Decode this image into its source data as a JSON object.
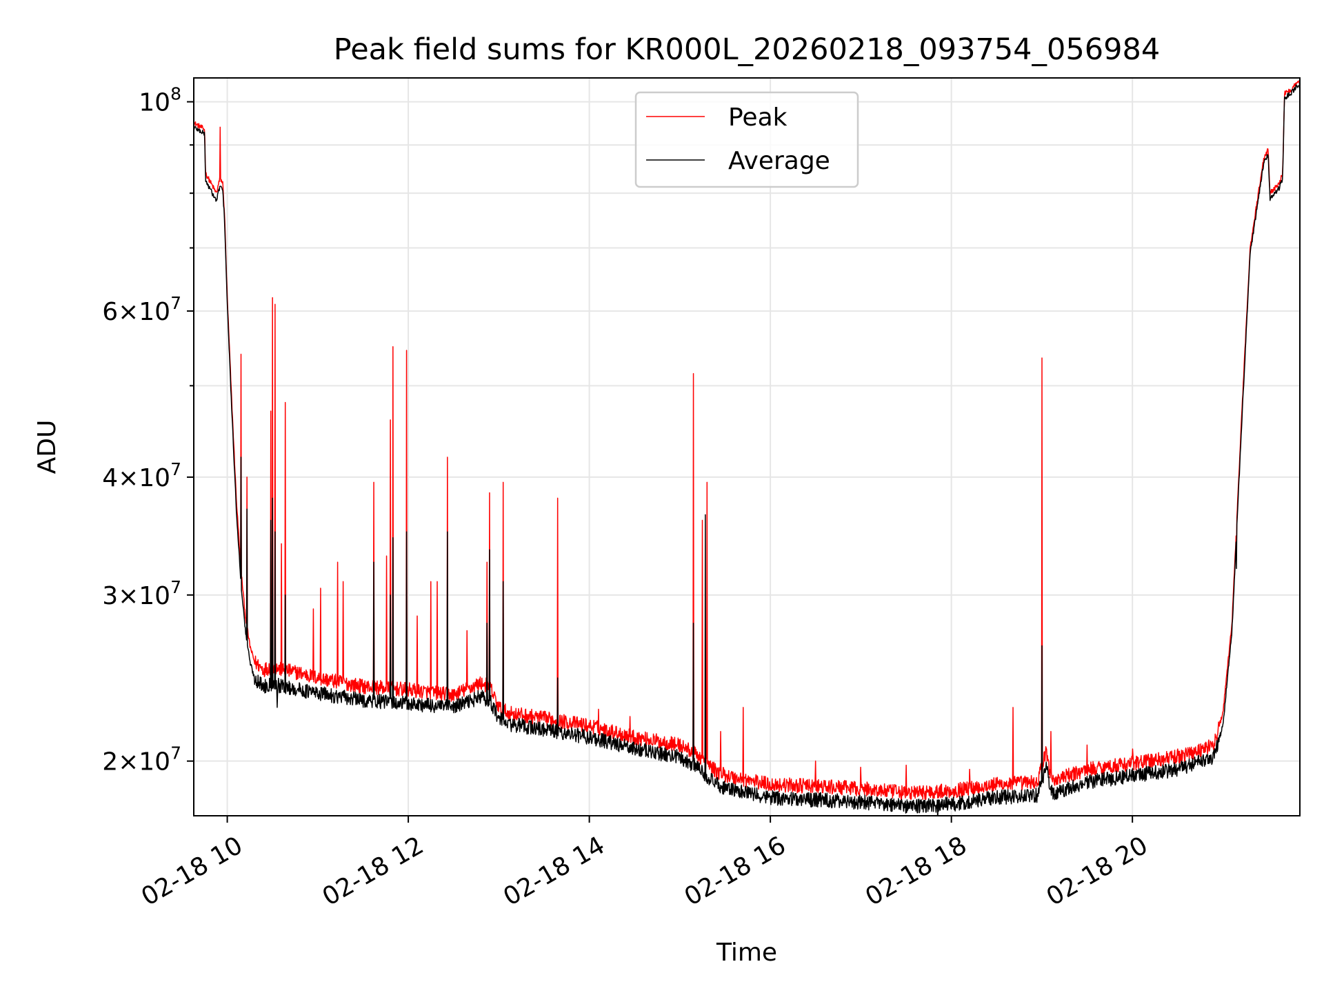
{
  "chart_data": {
    "type": "line",
    "title": "Peak field sums for KR000L_20260218_093754_056984",
    "xlabel": "Time",
    "ylabel": "ADU",
    "yscale": "log",
    "xlim": [
      9.63,
      21.85
    ],
    "ylim": [
      17500000,
      106000000
    ],
    "grid": true,
    "legend_position": "upper center",
    "x_ticks": [
      {
        "value": 10,
        "label": "02-18 10"
      },
      {
        "value": 12,
        "label": "02-18 12"
      },
      {
        "value": 14,
        "label": "02-18 14"
      },
      {
        "value": 16,
        "label": "02-18 16"
      },
      {
        "value": 18,
        "label": "02-18 18"
      },
      {
        "value": 20,
        "label": "02-18 20"
      }
    ],
    "y_ticks": [
      {
        "value": 20000000,
        "base": "2",
        "exp": "7"
      },
      {
        "value": 30000000,
        "base": "3",
        "exp": "7"
      },
      {
        "value": 40000000,
        "base": "4",
        "exp": "7"
      },
      {
        "value": 60000000,
        "base": "6",
        "exp": "7"
      },
      {
        "value": 100000000,
        "base": "",
        "exp": "8"
      }
    ],
    "y_minor_ticks": [
      50000000,
      70000000,
      80000000,
      90000000
    ],
    "times_label": "×",
    "tick_base_ten": "10",
    "series": [
      {
        "name": "Peak",
        "color": "#ff0000",
        "x": [
          9.63,
          9.75,
          9.76,
          9.88,
          9.92,
          9.95,
          9.97,
          10.0,
          10.05,
          10.1,
          10.15,
          10.2,
          10.25,
          10.3,
          10.4,
          10.5,
          10.6,
          10.8,
          11.0,
          11.5,
          12.0,
          12.5,
          12.8,
          12.9,
          13.0,
          13.1,
          13.5,
          14.0,
          14.5,
          15.0,
          15.2,
          15.4,
          15.6,
          16.0,
          16.5,
          17.0,
          17.5,
          18.0,
          18.5,
          18.95,
          19.05,
          19.1,
          19.15,
          19.5,
          20.0,
          20.5,
          20.9,
          21.0,
          21.1,
          21.2,
          21.3,
          21.45,
          21.5,
          21.52,
          21.62,
          21.66,
          21.68,
          21.75,
          21.82,
          21.85
        ],
        "y": [
          95000000,
          93500000,
          84000000,
          80000000,
          83000000,
          82000000,
          76000000,
          62000000,
          48000000,
          38000000,
          32000000,
          28500000,
          26500000,
          25500000,
          25000000,
          25200000,
          25000000,
          24800000,
          24500000,
          24000000,
          23800000,
          23500000,
          24200000,
          24000000,
          22800000,
          22500000,
          22200000,
          21800000,
          21200000,
          20800000,
          20300000,
          19500000,
          19200000,
          18900000,
          18800000,
          18700000,
          18500000,
          18600000,
          18900000,
          19000000,
          20500000,
          19200000,
          19100000,
          19600000,
          19900000,
          20200000,
          20800000,
          22500000,
          28000000,
          45000000,
          70000000,
          87000000,
          89000000,
          80000000,
          82000000,
          84000000,
          102000000,
          103000000,
          105000000,
          104500000
        ],
        "spikes": [
          [
            9.92,
            94000000
          ],
          [
            10.15,
            54000000
          ],
          [
            10.22,
            40000000
          ],
          [
            10.48,
            47000000
          ],
          [
            10.5,
            62000000
          ],
          [
            10.53,
            61000000
          ],
          [
            10.6,
            34000000
          ],
          [
            10.64,
            48000000
          ],
          [
            10.95,
            29000000
          ],
          [
            11.03,
            30500000
          ],
          [
            11.22,
            32500000
          ],
          [
            11.28,
            31000000
          ],
          [
            11.62,
            39500000
          ],
          [
            11.76,
            33000000
          ],
          [
            11.8,
            46000000
          ],
          [
            11.83,
            55000000
          ],
          [
            11.98,
            54500000
          ],
          [
            12.1,
            28500000
          ],
          [
            12.25,
            31000000
          ],
          [
            12.32,
            31000000
          ],
          [
            12.43,
            42000000
          ],
          [
            12.65,
            27500000
          ],
          [
            12.87,
            32500000
          ],
          [
            12.9,
            38500000
          ],
          [
            13.05,
            39500000
          ],
          [
            13.65,
            38000000
          ],
          [
            14.1,
            22700000
          ],
          [
            14.45,
            22300000
          ],
          [
            15.15,
            51500000
          ],
          [
            15.25,
            36000000
          ],
          [
            15.3,
            39500000
          ],
          [
            15.45,
            21500000
          ],
          [
            15.7,
            22800000
          ],
          [
            16.5,
            20000000
          ],
          [
            17.0,
            19700000
          ],
          [
            17.5,
            19800000
          ],
          [
            18.2,
            19600000
          ],
          [
            18.68,
            22800000
          ],
          [
            19.0,
            53500000
          ],
          [
            19.1,
            21500000
          ],
          [
            19.5,
            20800000
          ],
          [
            20.0,
            20600000
          ],
          [
            20.5,
            20600000
          ],
          [
            20.95,
            22000000
          ],
          [
            21.15,
            33500000
          ]
        ]
      },
      {
        "name": "Average",
        "color": "#000000",
        "x": [
          9.63,
          9.75,
          9.76,
          9.88,
          9.92,
          9.95,
          9.97,
          10.0,
          10.05,
          10.1,
          10.15,
          10.2,
          10.25,
          10.3,
          10.4,
          10.5,
          10.6,
          10.8,
          11.0,
          11.5,
          12.0,
          12.5,
          12.8,
          12.9,
          13.0,
          13.1,
          13.5,
          14.0,
          14.5,
          15.0,
          15.2,
          15.4,
          15.6,
          16.0,
          16.5,
          17.0,
          17.5,
          18.0,
          18.5,
          18.95,
          19.05,
          19.1,
          19.15,
          19.5,
          20.0,
          20.5,
          20.9,
          21.0,
          21.1,
          21.2,
          21.3,
          21.45,
          21.5,
          21.52,
          21.62,
          21.66,
          21.68,
          21.75,
          21.82,
          21.85
        ],
        "y": [
          94000000,
          92500000,
          82500000,
          78500000,
          81500000,
          80500000,
          75000000,
          61000000,
          47000000,
          37000000,
          31000000,
          27500000,
          25500000,
          24500000,
          24000000,
          24200000,
          24000000,
          23800000,
          23600000,
          23200000,
          23000000,
          22800000,
          23400000,
          23200000,
          22200000,
          21900000,
          21600000,
          21200000,
          20600000,
          20200000,
          19700000,
          18900000,
          18600000,
          18300000,
          18200000,
          18100000,
          17900000,
          18000000,
          18300000,
          18400000,
          19800000,
          18600000,
          18500000,
          19000000,
          19300000,
          19600000,
          20200000,
          21800000,
          27500000,
          44000000,
          69000000,
          86000000,
          88000000,
          79000000,
          81000000,
          83000000,
          101000000,
          102000000,
          104000000,
          103500000
        ],
        "spikes": [
          [
            10.15,
            42000000
          ],
          [
            10.22,
            37000000
          ],
          [
            10.48,
            36000000
          ],
          [
            10.5,
            38000000
          ],
          [
            10.53,
            35000000
          ],
          [
            10.64,
            30000000
          ],
          [
            10.55,
            22800000
          ],
          [
            11.62,
            32500000
          ],
          [
            11.8,
            30000000
          ],
          [
            11.83,
            34500000
          ],
          [
            11.98,
            35000000
          ],
          [
            12.43,
            35000000
          ],
          [
            12.87,
            28000000
          ],
          [
            12.9,
            33500000
          ],
          [
            13.05,
            31000000
          ],
          [
            13.65,
            24500000
          ],
          [
            15.15,
            28000000
          ],
          [
            15.28,
            36500000
          ],
          [
            17.85,
            17200000
          ],
          [
            19.0,
            26500000
          ],
          [
            21.15,
            32000000
          ]
        ]
      }
    ]
  }
}
